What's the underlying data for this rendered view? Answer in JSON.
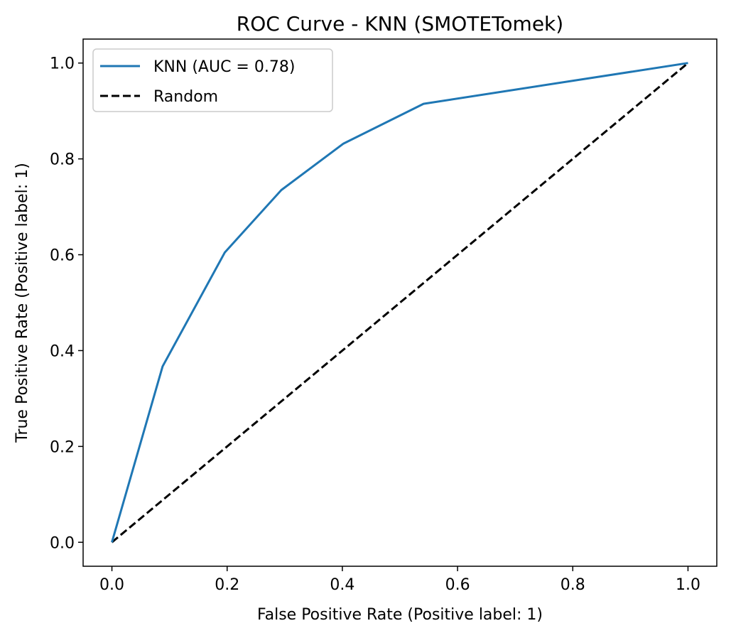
{
  "chart_data": {
    "type": "line",
    "title": "ROC Curve - KNN (SMOTETomek)",
    "xlabel": "False Positive Rate (Positive label: 1)",
    "ylabel": "True Positive Rate (Positive label: 1)",
    "xlim": [
      -0.05,
      1.05
    ],
    "ylim": [
      -0.05,
      1.05
    ],
    "xticks": [
      0.0,
      0.2,
      0.4,
      0.6,
      0.8,
      1.0
    ],
    "yticks": [
      0.0,
      0.2,
      0.4,
      0.6,
      0.8,
      1.0
    ],
    "xtick_labels": [
      "0.0",
      "0.2",
      "0.4",
      "0.6",
      "0.8",
      "1.0"
    ],
    "ytick_labels": [
      "0.0",
      "0.2",
      "0.4",
      "0.6",
      "0.8",
      "1.0"
    ],
    "grid": false,
    "legend_position": "top-left",
    "series": [
      {
        "name": "KNN (AUC = 0.78)",
        "color": "#1f77b4",
        "style": "solid",
        "x": [
          0.0,
          0.088,
          0.196,
          0.294,
          0.402,
          0.541,
          1.0
        ],
        "y": [
          0.0,
          0.367,
          0.605,
          0.735,
          0.832,
          0.915,
          1.0
        ]
      },
      {
        "name": "Random",
        "color": "#000000",
        "style": "dashed",
        "x": [
          0.0,
          1.0
        ],
        "y": [
          0.0,
          1.0
        ]
      }
    ]
  }
}
